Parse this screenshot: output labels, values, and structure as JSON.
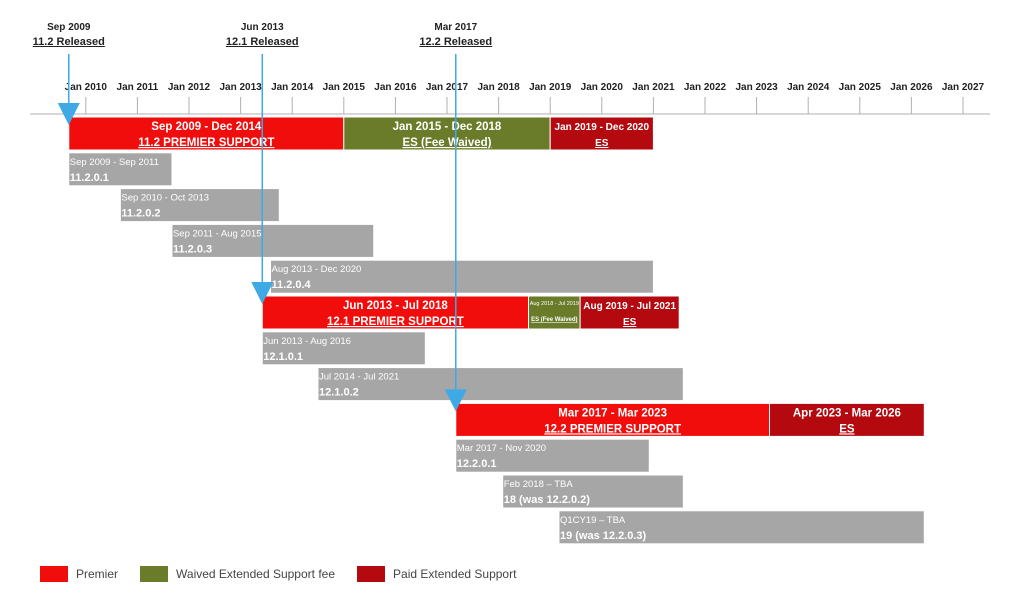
{
  "releases": [
    {
      "date": "Sep 2009",
      "label": "11.2 Released",
      "x": 2009.67
    },
    {
      "date": "Jun 2013",
      "label": "12.1 Released",
      "x": 2013.42
    },
    {
      "date": "Mar 2017",
      "label": "12.2 Released",
      "x": 2017.17
    }
  ],
  "legend": [
    {
      "label": "Premier",
      "color": "#f20d0d"
    },
    {
      "label": "Waived Extended Support fee",
      "color": "#6a7b2a"
    },
    {
      "label": "Paid Extended Support",
      "color": "#b3090f"
    }
  ],
  "chart_data": {
    "type": "gantt",
    "x_axis": {
      "ticks": [
        "Jan 2010",
        "Jan 2011",
        "Jan 2012",
        "Jan 2013",
        "Jan 2014",
        "Jan 2015",
        "Jan 2016",
        "Jan 2017",
        "Jan 2018",
        "Jan 2019",
        "Jan 2020",
        "Jan 2021",
        "Jan 2022",
        "Jan 2023",
        "Jan 2024",
        "Jan 2025",
        "Jan 2026",
        "Jan 2027"
      ]
    },
    "bars": [
      {
        "row": 0,
        "start": 2009.67,
        "end": 2015.0,
        "category": "premier",
        "range": "Sep 2009 - Dec 2014",
        "name": "11.2 PREMIER SUPPORT"
      },
      {
        "row": 0,
        "start": 2015.0,
        "end": 2019.0,
        "category": "waived",
        "range": "Jan 2015 - Dec 2018",
        "name": "ES (Fee Waived)"
      },
      {
        "row": 0,
        "start": 2019.0,
        "end": 2021.0,
        "category": "paid",
        "range": "Jan 2019 - Dec 2020",
        "name": "ES"
      },
      {
        "row": 1,
        "start": 2009.67,
        "end": 2011.67,
        "category": "patch",
        "range": "Sep 2009 - Sep 2011",
        "name": "11.2.0.1"
      },
      {
        "row": 2,
        "start": 2010.67,
        "end": 2013.75,
        "category": "patch",
        "range": "Sep 2010 - Oct 2013",
        "name": "11.2.0.2"
      },
      {
        "row": 3,
        "start": 2011.67,
        "end": 2015.58,
        "category": "patch",
        "range": "Sep 2011 - Aug 2015",
        "name": "11.2.0.3"
      },
      {
        "row": 4,
        "start": 2013.58,
        "end": 2021.0,
        "category": "patch",
        "range": "Aug 2013 - Dec 2020",
        "name": "11.2.0.4"
      },
      {
        "row": 5,
        "start": 2013.42,
        "end": 2018.58,
        "category": "premier",
        "range": "Jun 2013 - Jul 2018",
        "name": "12.1 PREMIER SUPPORT"
      },
      {
        "row": 5,
        "start": 2018.58,
        "end": 2019.58,
        "category": "waived",
        "range": "Aug 2018 - Jul 2019",
        "name": "ES (Fee Waived)",
        "small": true
      },
      {
        "row": 5,
        "start": 2019.58,
        "end": 2021.5,
        "category": "paid",
        "range": "Aug 2019 - Jul 2021",
        "name": "ES"
      },
      {
        "row": 6,
        "start": 2013.42,
        "end": 2016.58,
        "category": "patch",
        "range": "Jun 2013 - Aug 2016",
        "name": "12.1.0.1"
      },
      {
        "row": 7,
        "start": 2014.5,
        "end": 2021.58,
        "category": "patch",
        "range": "Jul 2014 - Jul 2021",
        "name": "12.1.0.2"
      },
      {
        "row": 8,
        "start": 2017.17,
        "end": 2023.25,
        "category": "premier",
        "range": "Mar 2017 - Mar 2023",
        "name": "12.2 PREMIER SUPPORT"
      },
      {
        "row": 8,
        "start": 2023.25,
        "end": 2026.25,
        "category": "paid",
        "range": "Apr 2023 - Mar 2026",
        "name": "ES"
      },
      {
        "row": 9,
        "start": 2017.17,
        "end": 2020.92,
        "category": "patch",
        "range": "Mar 2017 - Nov 2020",
        "name": "12.2.0.1"
      },
      {
        "row": 10,
        "start": 2018.08,
        "end": 2021.58,
        "category": "patch",
        "range": "Feb 2018 – TBA",
        "name": "18 (was 12.2.0.2)"
      },
      {
        "row": 11,
        "start": 2019.17,
        "end": 2026.25,
        "category": "patch",
        "range": "Q1CY19 – TBA",
        "name": "19 (was 12.2.0.3)"
      }
    ]
  }
}
